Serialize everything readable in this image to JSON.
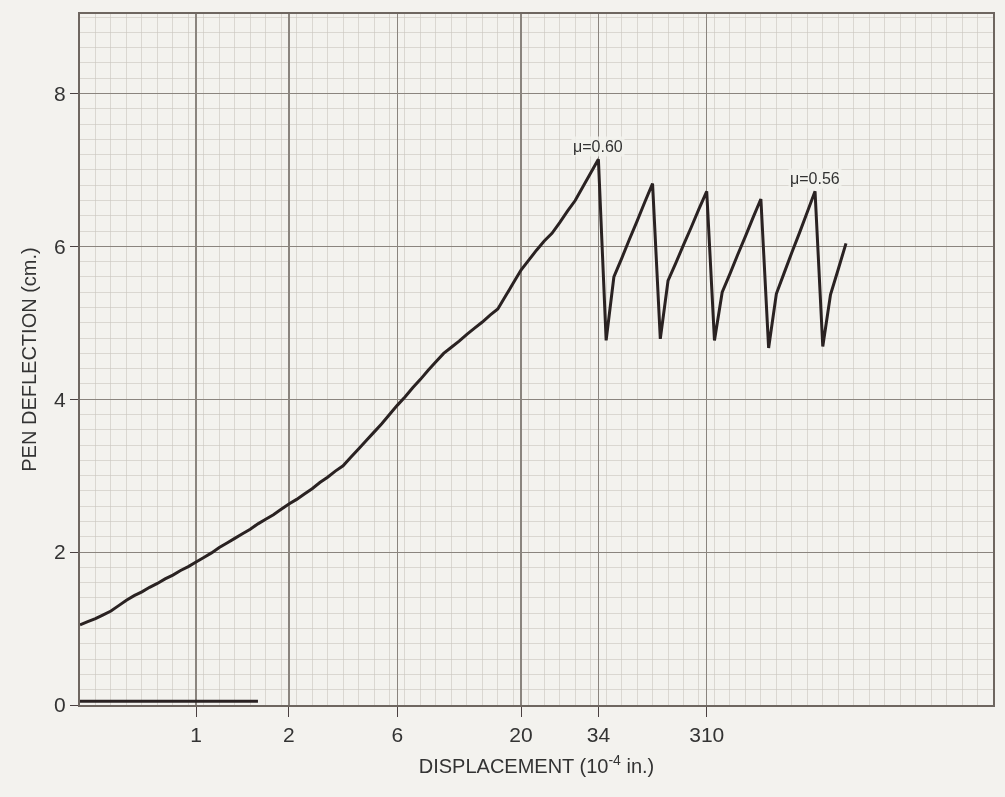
{
  "chart_data": {
    "type": "line",
    "xlabel": "DISPLACEMENT (10$^{-4}$ in.)",
    "ylabel": "PEN DEFLECTION (cm.)",
    "categories": [
      null,
      null,
      null,
      null,
      null,
      null,
      null,
      null,
      null,
      null,
      null,
      null,
      null,
      null,
      null,
      "1",
      null,
      null,
      null,
      null,
      null,
      null,
      null,
      null,
      null,
      null,
      null,
      "2",
      null,
      null,
      null,
      null,
      null,
      null,
      null,
      null,
      null,
      null,
      null,
      null,
      null,
      "6",
      null,
      null,
      null,
      null,
      null,
      null,
      null,
      null,
      null,
      null,
      null,
      null,
      null,
      null,
      null,
      "20",
      null,
      null,
      null,
      null,
      null,
      null,
      null,
      null,
      null,
      "34",
      null,
      null,
      null,
      null,
      null,
      null,
      null,
      null,
      null,
      null,
      null,
      null,
      null,
      "310",
      null,
      null,
      null,
      null,
      null,
      null,
      null,
      null,
      null,
      null,
      null,
      null,
      null,
      null,
      null,
      null,
      null,
      null,
      null,
      null,
      null,
      null,
      null,
      null,
      null,
      null,
      null,
      null,
      null,
      null,
      null,
      null,
      null,
      null,
      null,
      null,
      null
    ],
    "ylim": [
      0,
      9.04
    ],
    "yticks": [
      0,
      2,
      4,
      6,
      8
    ],
    "grid": true,
    "marker": "none",
    "line_style": "solid",
    "series": [
      {
        "color": "#2a2222",
        "values": [
          1.05,
          1.09,
          1.13,
          1.18,
          1.23,
          1.3,
          1.37,
          1.43,
          1.48,
          1.54,
          1.59,
          1.65,
          1.7,
          1.76,
          1.81,
          1.87,
          1.93,
          1.99,
          2.06,
          2.12,
          2.18,
          2.24,
          2.3,
          2.37,
          2.43,
          2.49,
          2.56,
          2.63,
          2.69,
          2.76,
          2.83,
          2.91,
          2.98,
          3.06,
          3.13,
          3.24,
          3.35,
          3.46,
          3.57,
          3.68,
          3.8,
          3.92,
          4.03,
          4.15,
          4.26,
          4.38,
          4.49,
          4.6,
          4.68,
          4.76,
          4.85,
          4.93,
          5.01,
          5.1,
          5.18,
          5.35,
          5.52,
          5.69,
          5.82,
          5.95,
          6.07,
          6.17,
          6.31,
          6.46,
          6.6,
          6.78,
          6.96,
          7.14,
          4.77,
          5.6,
          5.84,
          6.09,
          6.33,
          6.58,
          6.82,
          4.79,
          5.55,
          5.78,
          6.02,
          6.25,
          6.49,
          6.72,
          4.77,
          5.4,
          5.64,
          5.89,
          6.13,
          6.38,
          6.62,
          4.67,
          5.38,
          5.65,
          5.92,
          6.18,
          6.45,
          6.72,
          4.69,
          5.37,
          5.7,
          6.04,
          null,
          null,
          null,
          null,
          null,
          null,
          null,
          null,
          null,
          null,
          null,
          null,
          null,
          null,
          null,
          null,
          null,
          null,
          null
        ]
      },
      {
        "color": "#2a2222",
        "values": [
          0.05,
          0.05,
          0.05,
          0.05,
          0.05,
          0.05,
          0.05,
          0.05,
          0.05,
          0.05,
          0.05,
          0.05,
          0.05,
          0.05,
          0.05,
          0.05,
          0.05,
          0.05,
          0.05,
          0.05,
          0.05,
          0.05,
          0.05,
          0.05,
          null,
          null,
          null,
          null,
          null,
          null,
          null,
          null,
          null,
          null,
          null,
          null,
          null,
          null,
          null,
          null,
          null,
          null,
          null,
          null,
          null,
          null,
          null,
          null,
          null,
          null,
          null,
          null,
          null,
          null,
          null,
          null,
          null,
          null,
          null,
          null,
          null,
          null,
          null,
          null,
          null,
          null,
          null,
          null,
          null,
          null,
          null,
          null,
          null,
          null,
          null,
          null,
          null,
          null,
          null,
          null,
          null,
          null,
          null,
          null,
          null,
          null,
          null,
          null,
          null,
          null,
          null,
          null,
          null,
          null,
          null,
          null,
          null,
          null,
          null,
          null,
          null,
          null,
          null,
          null,
          null,
          null,
          null,
          null,
          null,
          null,
          null,
          null,
          null,
          null,
          null,
          null,
          null,
          null,
          null
        ]
      }
    ],
    "annotations": [
      {
        "text": "μ=0.60",
        "x": "34",
        "y": 7.14
      },
      {
        "text": "μ=0.56",
        "y": 6.72
      }
    ]
  }
}
